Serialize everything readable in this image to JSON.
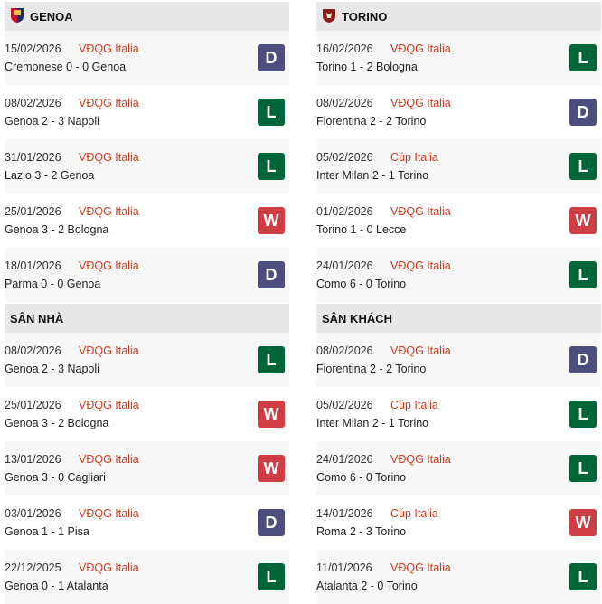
{
  "colors": {
    "D": "#4e4e7e",
    "L": "#006639",
    "W": "#cf3e44",
    "competition": "#cc3d1f"
  },
  "sections": [
    {
      "title": "GENOA",
      "logo": "genoa-crest",
      "matches": [
        {
          "date": "15/02/2026",
          "comp": "VĐQG Italia",
          "match": "Cremonese 0 - 0 Genoa",
          "result": "D"
        },
        {
          "date": "08/02/2026",
          "comp": "VĐQG Italia",
          "match": "Genoa 2 - 3 Napoli",
          "result": "L"
        },
        {
          "date": "31/01/2026",
          "comp": "VĐQG Italia",
          "match": "Lazio 3 - 2 Genoa",
          "result": "L"
        },
        {
          "date": "25/01/2026",
          "comp": "VĐQG Italia",
          "match": "Genoa 3 - 2 Bologna",
          "result": "W"
        },
        {
          "date": "18/01/2026",
          "comp": "VĐQG Italia",
          "match": "Parma 0 - 0 Genoa",
          "result": "D"
        }
      ]
    },
    {
      "title": "TORINO",
      "logo": "torino-crest",
      "matches": [
        {
          "date": "16/02/2026",
          "comp": "VĐQG Italia",
          "match": "Torino 1 - 2 Bologna",
          "result": "L"
        },
        {
          "date": "08/02/2026",
          "comp": "VĐQG Italia",
          "match": "Fiorentina 2 - 2 Torino",
          "result": "D"
        },
        {
          "date": "05/02/2026",
          "comp": "Cúp Italia",
          "match": "Inter Milan 2 - 1 Torino",
          "result": "L"
        },
        {
          "date": "01/02/2026",
          "comp": "VĐQG Italia",
          "match": "Torino 1 - 0 Lecce",
          "result": "W"
        },
        {
          "date": "24/01/2026",
          "comp": "VĐQG Italia",
          "match": "Como 6 - 0 Torino",
          "result": "L"
        }
      ]
    },
    {
      "title": "SÂN NHÀ",
      "matches": [
        {
          "date": "08/02/2026",
          "comp": "VĐQG Italia",
          "match": "Genoa 2 - 3 Napoli",
          "result": "L"
        },
        {
          "date": "25/01/2026",
          "comp": "VĐQG Italia",
          "match": "Genoa 3 - 2 Bologna",
          "result": "W"
        },
        {
          "date": "13/01/2026",
          "comp": "VĐQG Italia",
          "match": "Genoa 3 - 0 Cagliari",
          "result": "W"
        },
        {
          "date": "03/01/2026",
          "comp": "VĐQG Italia",
          "match": "Genoa 1 - 1 Pisa",
          "result": "D"
        },
        {
          "date": "22/12/2025",
          "comp": "VĐQG Italia",
          "match": "Genoa 0 - 1 Atalanta",
          "result": "L"
        }
      ]
    },
    {
      "title": "SÂN KHÁCH",
      "matches": [
        {
          "date": "08/02/2026",
          "comp": "VĐQG Italia",
          "match": "Fiorentina 2 - 2 Torino",
          "result": "D"
        },
        {
          "date": "05/02/2026",
          "comp": "Cúp Italia",
          "match": "Inter Milan 2 - 1 Torino",
          "result": "L"
        },
        {
          "date": "24/01/2026",
          "comp": "VĐQG Italia",
          "match": "Como 6 - 0 Torino",
          "result": "L"
        },
        {
          "date": "14/01/2026",
          "comp": "Cúp Italia",
          "match": "Roma 2 - 3 Torino",
          "result": "W"
        },
        {
          "date": "11/01/2026",
          "comp": "VĐQG Italia",
          "match": "Atalanta 2 - 0 Torino",
          "result": "L"
        }
      ]
    }
  ]
}
